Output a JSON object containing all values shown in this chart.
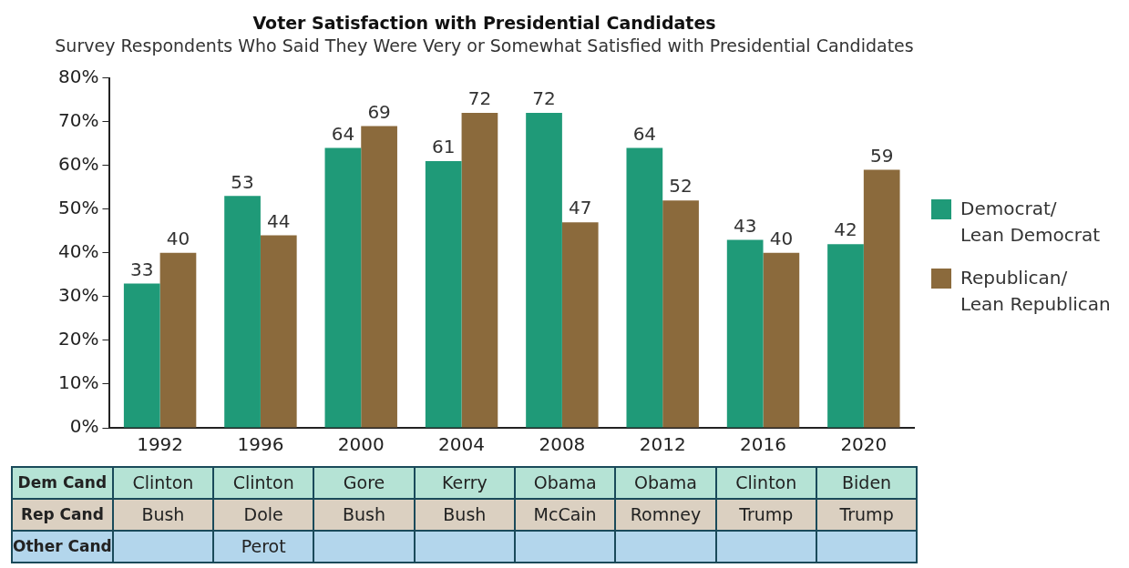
{
  "chart_data": {
    "type": "bar",
    "title": "Voter Satisfaction with Presidential Candidates",
    "subtitle": "Survey Respondents Who Said They Were Very or Somewhat Satisfied with Presidential Candidates",
    "categories": [
      "1992",
      "1996",
      "2000",
      "2004",
      "2008",
      "2012",
      "2016",
      "2020"
    ],
    "series": [
      {
        "name": "Democrat/\nLean Democrat",
        "color": "#1f9a78",
        "values": [
          33,
          53,
          64,
          61,
          72,
          64,
          43,
          42
        ]
      },
      {
        "name": "Republican/\nLean Republican",
        "color": "#8b6a3c",
        "values": [
          40,
          44,
          69,
          72,
          47,
          52,
          40,
          59
        ]
      }
    ],
    "ylim": [
      0,
      80
    ],
    "yticks": [
      {
        "value": 0,
        "label": "0%"
      },
      {
        "value": 10,
        "label": "10%"
      },
      {
        "value": 20,
        "label": "20%"
      },
      {
        "value": 30,
        "label": "30%"
      },
      {
        "value": 40,
        "label": "40%"
      },
      {
        "value": 50,
        "label": "50%"
      },
      {
        "value": 60,
        "label": "60%"
      },
      {
        "value": 70,
        "label": "70%"
      },
      {
        "value": 80,
        "label": "80%"
      }
    ],
    "grid": false,
    "legend": "right",
    "data_labels": true,
    "annotations": [
      "Dem Cand",
      "Clinton",
      "Clinton",
      "Gore",
      "Kerry",
      "Obama",
      "Obama",
      "Clinton",
      "Biden",
      "Rep Cand",
      "Bush",
      "Dole",
      "Bush",
      "Bush",
      "McCain",
      "Romney",
      "Trump",
      "Trump",
      "Other Cand",
      null,
      "Perot",
      null,
      null,
      null,
      null,
      null,
      null
    ]
  }
}
